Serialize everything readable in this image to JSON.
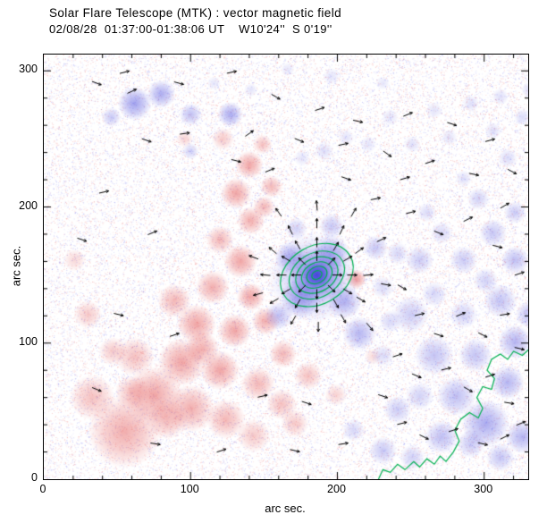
{
  "chart_data": {
    "type": "heatmap",
    "title": "Solar Flare Telescope (MTK) : vector magnetic field",
    "subtitle": "02/08/28  01:37:00-01:38:06 UT    W10'24''  S 0'19''",
    "xlabel": "arc sec.",
    "ylabel": "arc sec.",
    "xlim": [
      0,
      330
    ],
    "ylim": [
      0,
      312
    ],
    "xticks": [
      0,
      100,
      200,
      300
    ],
    "yticks": [
      0,
      100,
      200,
      300
    ],
    "minor_tick_step": 20,
    "legend": "red = positive polarity, blue = negative polarity, green = contours, black segments = transverse field vectors",
    "colors": {
      "positive": "#e14b4b",
      "negative": "#4b4be1",
      "contour": "#00b050",
      "arrow": "#000000",
      "frame": "#000000",
      "background": "#ffffff"
    },
    "noise": {
      "count": 42000,
      "seed": 7
    },
    "red_blobs": [
      [
        55,
        35,
        26,
        0.45
      ],
      [
        33,
        60,
        16,
        0.35
      ],
      [
        75,
        62,
        20,
        0.5
      ],
      [
        100,
        52,
        17,
        0.45
      ],
      [
        124,
        44,
        14,
        0.4
      ],
      [
        143,
        32,
        12,
        0.3
      ],
      [
        84,
        44,
        14,
        0.4
      ],
      [
        60,
        64,
        12,
        0.35
      ],
      [
        47,
        94,
        10,
        0.3
      ],
      [
        62,
        90,
        14,
        0.35
      ],
      [
        94,
        86,
        17,
        0.5
      ],
      [
        120,
        80,
        14,
        0.5
      ],
      [
        146,
        70,
        12,
        0.4
      ],
      [
        162,
        55,
        11,
        0.35
      ],
      [
        108,
        96,
        12,
        0.45
      ],
      [
        104,
        114,
        14,
        0.5
      ],
      [
        130,
        109,
        12,
        0.5
      ],
      [
        89,
        131,
        12,
        0.4
      ],
      [
        115,
        141,
        12,
        0.45
      ],
      [
        141,
        134,
        10,
        0.5
      ],
      [
        151,
        116,
        10,
        0.45
      ],
      [
        134,
        160,
        12,
        0.5
      ],
      [
        120,
        176,
        10,
        0.4
      ],
      [
        141,
        190,
        10,
        0.45
      ],
      [
        131,
        210,
        11,
        0.5
      ],
      [
        140,
        231,
        10,
        0.5
      ],
      [
        122,
        250,
        8,
        0.3
      ],
      [
        155,
        215,
        8,
        0.4
      ],
      [
        150,
        200,
        8,
        0.4
      ],
      [
        149,
        246,
        7,
        0.35
      ],
      [
        96,
        250,
        6,
        0.25
      ],
      [
        163,
        92,
        10,
        0.4
      ],
      [
        180,
        76,
        10,
        0.35
      ],
      [
        199,
        62,
        8,
        0.25
      ],
      [
        171,
        41,
        10,
        0.3
      ],
      [
        30,
        121,
        10,
        0.3
      ],
      [
        21,
        161,
        8,
        0.22
      ],
      [
        213,
        147,
        7,
        0.55
      ],
      [
        224,
        90,
        6,
        0.2
      ]
    ],
    "blue_blobs": [
      [
        186,
        150,
        10,
        0.95
      ],
      [
        186,
        150,
        20,
        0.6
      ],
      [
        184,
        148,
        32,
        0.35
      ],
      [
        175,
        133,
        14,
        0.45
      ],
      [
        196,
        166,
        13,
        0.4
      ],
      [
        205,
        130,
        12,
        0.4
      ],
      [
        168,
        163,
        11,
        0.4
      ],
      [
        215,
        107,
        12,
        0.4
      ],
      [
        226,
        170,
        9,
        0.3
      ],
      [
        160,
        120,
        10,
        0.35
      ],
      [
        196,
        186,
        9,
        0.3
      ],
      [
        172,
        184,
        8,
        0.25
      ],
      [
        62,
        276,
        12,
        0.5
      ],
      [
        80,
        283,
        10,
        0.45
      ],
      [
        100,
        268,
        8,
        0.35
      ],
      [
        127,
        268,
        9,
        0.45
      ],
      [
        100,
        241,
        6,
        0.25
      ],
      [
        46,
        266,
        7,
        0.3
      ],
      [
        250,
        121,
        13,
        0.28
      ],
      [
        266,
        91,
        14,
        0.32
      ],
      [
        281,
        61,
        14,
        0.35
      ],
      [
        301,
        41,
        17,
        0.45
      ],
      [
        316,
        71,
        12,
        0.4
      ],
      [
        321,
        101,
        12,
        0.4
      ],
      [
        311,
        131,
        12,
        0.32
      ],
      [
        294,
        91,
        12,
        0.32
      ],
      [
        271,
        31,
        12,
        0.35
      ],
      [
        241,
        51,
        10,
        0.28
      ],
      [
        256,
        161,
        10,
        0.28
      ],
      [
        286,
        161,
        10,
        0.28
      ],
      [
        306,
        181,
        10,
        0.3
      ],
      [
        321,
        161,
        10,
        0.35
      ],
      [
        326,
        31,
        12,
        0.4
      ],
      [
        231,
        21,
        10,
        0.3
      ],
      [
        211,
        36,
        8,
        0.22
      ],
      [
        331,
        121,
        10,
        0.35
      ],
      [
        296,
        206,
        8,
        0.25
      ],
      [
        321,
        196,
        8,
        0.28
      ],
      [
        256,
        61,
        10,
        0.25
      ],
      [
        286,
        121,
        10,
        0.25
      ],
      [
        301,
        146,
        9,
        0.25
      ],
      [
        266,
        136,
        9,
        0.22
      ],
      [
        316,
        236,
        7,
        0.2
      ],
      [
        291,
        26,
        10,
        0.3
      ],
      [
        311,
        16,
        10,
        0.32
      ],
      [
        251,
        16,
        9,
        0.25
      ],
      [
        271,
        181,
        8,
        0.22
      ],
      [
        241,
        166,
        8,
        0.22
      ],
      [
        261,
        196,
        7,
        0.2
      ],
      [
        286,
        221,
        6,
        0.18
      ],
      [
        251,
        246,
        6,
        0.18
      ],
      [
        276,
        251,
        6,
        0.16
      ],
      [
        306,
        256,
        6,
        0.18
      ],
      [
        231,
        141,
        8,
        0.2
      ],
      [
        236,
        116,
        8,
        0.22
      ],
      [
        231,
        91,
        8,
        0.2
      ],
      [
        191,
        241,
        7,
        0.18
      ],
      [
        206,
        251,
        6,
        0.16
      ],
      [
        176,
        236,
        6,
        0.15
      ],
      [
        221,
        246,
        6,
        0.15
      ],
      [
        236,
        266,
        6,
        0.15
      ],
      [
        266,
        271,
        6,
        0.16
      ],
      [
        291,
        276,
        6,
        0.18
      ],
      [
        311,
        281,
        6,
        0.18
      ],
      [
        196,
        296,
        6,
        0.15
      ],
      [
        231,
        291,
        5,
        0.14
      ],
      [
        166,
        301,
        5,
        0.14
      ],
      [
        141,
        286,
        5,
        0.15
      ],
      [
        116,
        291,
        5,
        0.14
      ],
      [
        326,
        266,
        6,
        0.2
      ],
      [
        331,
        286,
        6,
        0.2
      ]
    ],
    "contour": {
      "center": [
        186,
        150
      ],
      "radii": [
        3.5,
        7,
        10.5,
        14.5,
        19,
        25
      ],
      "rotation_deg": -30,
      "aspect": 0.85
    },
    "contour_polyline": [
      [
        228,
        0
      ],
      [
        231,
        7
      ],
      [
        236,
        5
      ],
      [
        241,
        11
      ],
      [
        246,
        7
      ],
      [
        252,
        13
      ],
      [
        256,
        9
      ],
      [
        261,
        15
      ],
      [
        266,
        11
      ],
      [
        270,
        17
      ],
      [
        274,
        13
      ],
      [
        279,
        20
      ],
      [
        283,
        28
      ],
      [
        280,
        36
      ],
      [
        284,
        44
      ],
      [
        290,
        49
      ],
      [
        296,
        45
      ],
      [
        299,
        52
      ],
      [
        295,
        60
      ],
      [
        299,
        68
      ],
      [
        305,
        66
      ],
      [
        307,
        74
      ],
      [
        302,
        80
      ],
      [
        305,
        88
      ],
      [
        311,
        92
      ],
      [
        316,
        88
      ],
      [
        320,
        94
      ],
      [
        326,
        91
      ],
      [
        330,
        95
      ]
    ],
    "arrows": [
      [
        172,
        150,
        180
      ],
      [
        176,
        160,
        135
      ],
      [
        186,
        164,
        90
      ],
      [
        196,
        160,
        45
      ],
      [
        200,
        150,
        0
      ],
      [
        196,
        140,
        -45
      ],
      [
        186,
        136,
        -90
      ],
      [
        176,
        140,
        -135
      ],
      [
        162,
        150,
        180
      ],
      [
        165,
        162,
        150
      ],
      [
        173,
        172,
        120
      ],
      [
        186,
        174,
        90
      ],
      [
        199,
        171,
        60
      ],
      [
        207,
        162,
        30
      ],
      [
        210,
        150,
        0
      ],
      [
        207,
        138,
        -30
      ],
      [
        199,
        129,
        -60
      ],
      [
        186,
        126,
        -90
      ],
      [
        173,
        129,
        -120
      ],
      [
        165,
        138,
        -150
      ],
      [
        151,
        150,
        175
      ],
      [
        156,
        168,
        140
      ],
      [
        168,
        183,
        115
      ],
      [
        186,
        188,
        90
      ],
      [
        203,
        183,
        65
      ],
      [
        215,
        168,
        35
      ],
      [
        221,
        150,
        5
      ],
      [
        216,
        132,
        -30
      ],
      [
        204,
        118,
        -60
      ],
      [
        187,
        112,
        -90
      ],
      [
        170,
        117,
        -120
      ],
      [
        157,
        131,
        -150
      ],
      [
        143,
        163,
        160
      ],
      [
        146,
        136,
        -165
      ],
      [
        160,
        196,
        125
      ],
      [
        186,
        201,
        95
      ],
      [
        211,
        196,
        60
      ],
      [
        230,
        176,
        25
      ],
      [
        233,
        143,
        -10
      ],
      [
        222,
        112,
        -50
      ],
      [
        60,
        285,
        25
      ],
      [
        92,
        291,
        -15
      ],
      [
        128,
        299,
        12
      ],
      [
        158,
        281,
        -30
      ],
      [
        188,
        272,
        18
      ],
      [
        214,
        263,
        -12
      ],
      [
        248,
        268,
        22
      ],
      [
        278,
        261,
        -18
      ],
      [
        304,
        249,
        15
      ],
      [
        319,
        226,
        -28
      ],
      [
        140,
        254,
        35
      ],
      [
        174,
        249,
        -22
      ],
      [
        204,
        246,
        12
      ],
      [
        234,
        239,
        -35
      ],
      [
        263,
        233,
        18
      ],
      [
        293,
        224,
        -12
      ],
      [
        314,
        201,
        30
      ],
      [
        131,
        234,
        -14
      ],
      [
        154,
        227,
        22
      ],
      [
        96,
        254,
        8
      ],
      [
        70,
        249,
        -18
      ],
      [
        36,
        291,
        -20
      ],
      [
        55,
        299,
        14
      ],
      [
        250,
        196,
        14
      ],
      [
        269,
        181,
        -22
      ],
      [
        289,
        191,
        26
      ],
      [
        309,
        171,
        -14
      ],
      [
        324,
        151,
        18
      ],
      [
        244,
        141,
        -30
      ],
      [
        256,
        121,
        13
      ],
      [
        269,
        106,
        -18
      ],
      [
        284,
        121,
        22
      ],
      [
        299,
        106,
        -26
      ],
      [
        314,
        121,
        9
      ],
      [
        324,
        96,
        -13
      ],
      [
        241,
        91,
        18
      ],
      [
        254,
        76,
        -22
      ],
      [
        274,
        81,
        13
      ],
      [
        289,
        66,
        -30
      ],
      [
        304,
        76,
        18
      ],
      [
        317,
        56,
        -9
      ],
      [
        325,
        41,
        22
      ],
      [
        231,
        61,
        -18
      ],
      [
        244,
        41,
        13
      ],
      [
        259,
        31,
        -26
      ],
      [
        279,
        36,
        18
      ],
      [
        299,
        26,
        -13
      ],
      [
        314,
        31,
        26
      ],
      [
        41,
        211,
        13
      ],
      [
        26,
        176,
        -18
      ],
      [
        74,
        181,
        22
      ],
      [
        51,
        121,
        -13
      ],
      [
        89,
        106,
        18
      ],
      [
        36,
        66,
        -22
      ],
      [
        149,
        61,
        13
      ],
      [
        179,
        56,
        -18
      ],
      [
        204,
        26,
        9
      ],
      [
        171,
        21,
        -13
      ],
      [
        121,
        21,
        18
      ],
      [
        76,
        26,
        -9
      ],
      [
        246,
        221,
        16
      ],
      [
        206,
        221,
        -19
      ],
      [
        226,
        206,
        11
      ]
    ]
  }
}
